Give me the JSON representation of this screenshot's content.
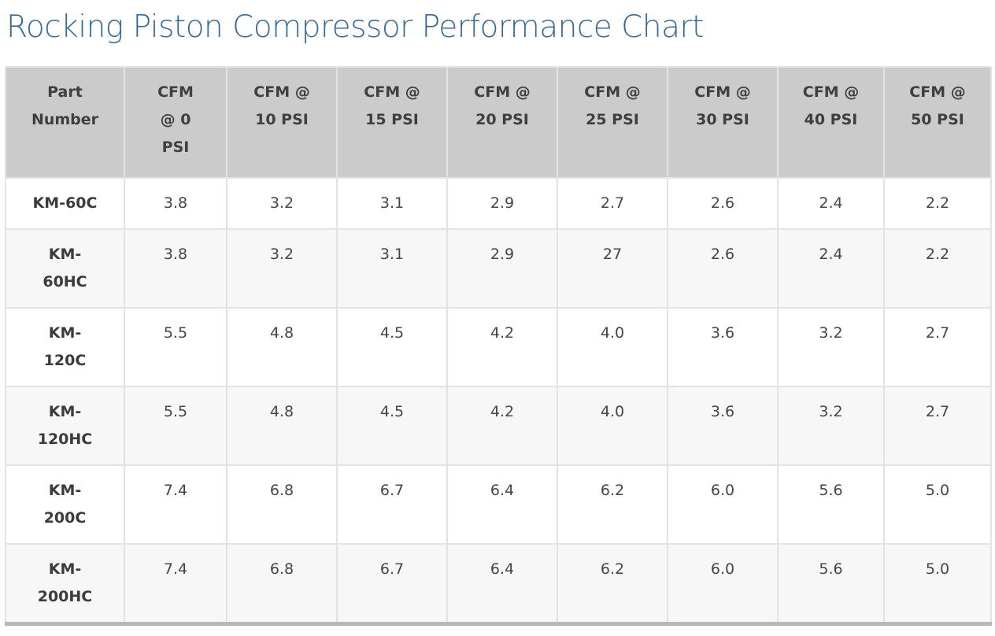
{
  "page": {
    "title": "Rocking Piston Compressor Performance Chart"
  },
  "colors": {
    "title_blue": "#35699c",
    "header_background": "#cbcbcb",
    "header_text": "#3f3f3f",
    "row_stripe": "#f7f7f7",
    "inner_border": "#e3e3e3",
    "table_top_border": "#b2b2b2",
    "table_bottom_border": "#b7b7b7",
    "body_text": "#454545"
  },
  "chart_data": {
    "type": "table",
    "title": "Rocking Piston Compressor Performance Chart",
    "columns": [
      "Part Number",
      "CFM @ 0 PSI",
      "CFM @ 10 PSI",
      "CFM @ 15 PSI",
      "CFM @ 20 PSI",
      "CFM @ 25 PSI",
      "CFM @ 30 PSI",
      "CFM @ 40 PSI",
      "CFM @ 50 PSI"
    ],
    "rows": [
      {
        "part_number": "KM-60C",
        "values": [
          "3.8",
          "3.2",
          "3.1",
          "2.9",
          "2.7",
          "2.6",
          "2.4",
          "2.2"
        ]
      },
      {
        "part_number": "KM-60HC",
        "values": [
          "3.8",
          "3.2",
          "3.1",
          "2.9",
          "27",
          "2.6",
          "2.4",
          "2.2"
        ]
      },
      {
        "part_number": "KM-120C",
        "values": [
          "5.5",
          "4.8",
          "4.5",
          "4.2",
          "4.0",
          "3.6",
          "3.2",
          "2.7"
        ]
      },
      {
        "part_number": "KM-120HC",
        "values": [
          "5.5",
          "4.8",
          "4.5",
          "4.2",
          "4.0",
          "3.6",
          "3.2",
          "2.7"
        ]
      },
      {
        "part_number": "KM-200C",
        "values": [
          "7.4",
          "6.8",
          "6.7",
          "6.4",
          "6.2",
          "6.0",
          "5.6",
          "5.0"
        ]
      },
      {
        "part_number": "KM-200HC",
        "values": [
          "7.4",
          "6.8",
          "6.7",
          "6.4",
          "6.2",
          "6.0",
          "5.6",
          "5.0"
        ]
      }
    ]
  }
}
